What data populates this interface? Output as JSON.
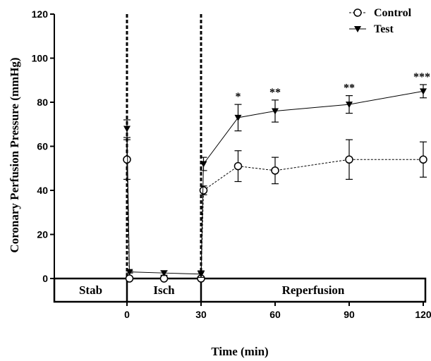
{
  "chart_data": {
    "type": "line",
    "title": "",
    "xlabel": "Time (min)",
    "ylabel": "Coronary Perfusion Pressure (mmHg)",
    "xlim": [
      -30,
      120
    ],
    "ylim": [
      0,
      120
    ],
    "y_ticks": [
      0,
      20,
      40,
      60,
      80,
      100,
      120
    ],
    "x_ticks": [
      0,
      30,
      60,
      90,
      120
    ],
    "y_tick_labels": [
      "0",
      "20",
      "40",
      "60",
      "80",
      "100",
      "120"
    ],
    "x_tick_labels": [
      "0",
      "30",
      "60",
      "90",
      "120"
    ],
    "legend_position": "top-right",
    "phases": [
      {
        "label": "Stab",
        "start": -30,
        "end": 0
      },
      {
        "label": "Isch",
        "start": 0,
        "end": 30
      },
      {
        "label": "Reperfusion",
        "start": 30,
        "end": 120
      }
    ],
    "series": [
      {
        "name": "Control",
        "marker": "open-circle",
        "line_style": "dashed",
        "x": [
          0,
          1,
          15,
          30,
          31,
          45,
          60,
          90,
          120
        ],
        "y": [
          54,
          0,
          0,
          0,
          40,
          51,
          49,
          54,
          54
        ],
        "err": [
          9,
          0,
          0,
          0,
          2,
          7,
          6,
          9,
          8
        ]
      },
      {
        "name": "Test",
        "marker": "filled-down-triangle",
        "line_style": "solid",
        "x": [
          0,
          1,
          15,
          30,
          31,
          45,
          60,
          90,
          120
        ],
        "y": [
          68,
          3,
          2.5,
          2,
          52,
          73,
          76,
          79,
          85
        ],
        "err": [
          4,
          0.5,
          1,
          1.5,
          3,
          6,
          5,
          4,
          3
        ]
      }
    ],
    "significance": [
      {
        "x": 45,
        "label": "*"
      },
      {
        "x": 60,
        "label": "**"
      },
      {
        "x": 90,
        "label": "**"
      },
      {
        "x": 120,
        "label": "***"
      }
    ],
    "ischemia_markers": [
      0,
      30
    ]
  }
}
